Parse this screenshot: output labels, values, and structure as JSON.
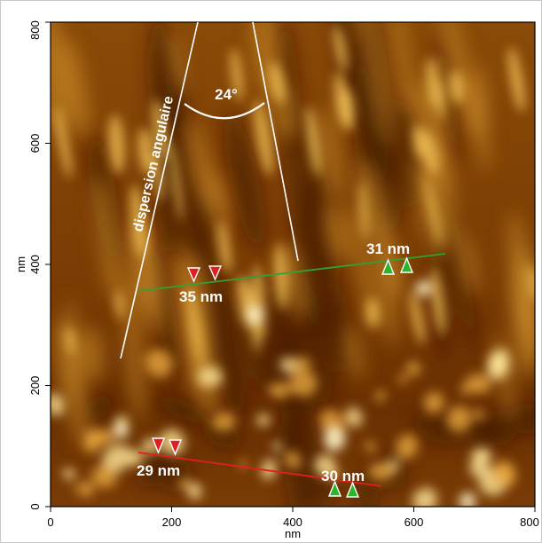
{
  "image": {
    "x_axis": {
      "title": "nm",
      "ticks": [
        "0",
        "200",
        "400",
        "600",
        "800"
      ]
    },
    "y_axis": {
      "title": "nm",
      "ticks": [
        "0",
        "200",
        "400",
        "600",
        "800"
      ]
    },
    "annotations": {
      "dispersion_label": "dispersion angulaire",
      "angle_label": "24°",
      "green_left_label": "35 nm",
      "green_right_label": "31 nm",
      "red_left_label": "29 nm",
      "red_right_label": "30 nm"
    },
    "colors": {
      "green_profile": "#33a033",
      "red_profile": "#e02020",
      "down_marker": "#e02020",
      "up_marker": "#2bb52b",
      "afm_dark": "#3a1600",
      "afm_light": "#ffe79a"
    }
  }
}
